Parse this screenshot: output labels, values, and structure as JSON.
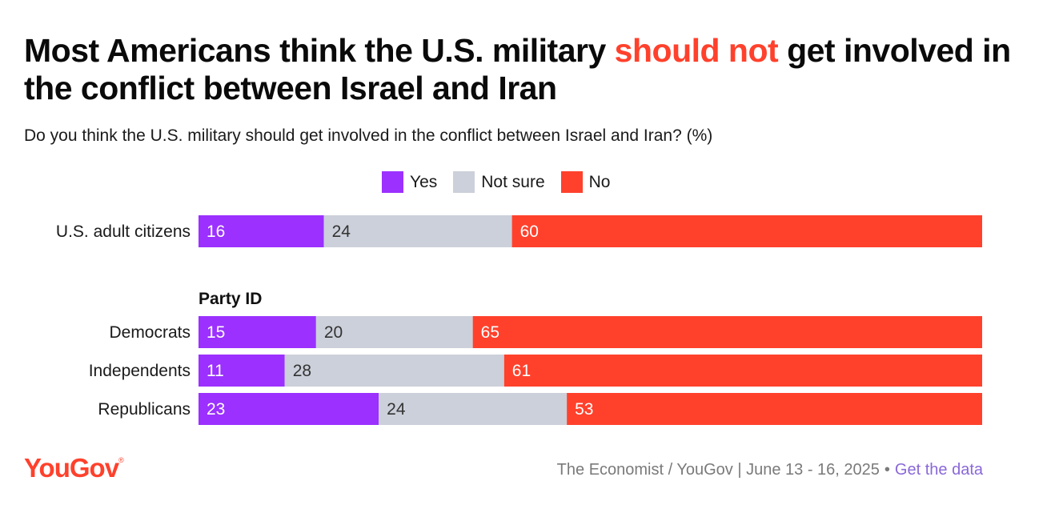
{
  "title": {
    "part1": "Most Americans think the U.S. military ",
    "highlight": "should not",
    "part2": " get involved in the conflict between Israel and Iran"
  },
  "subtitle": "Do you think the U.S. military should get involved in the conflict between Israel and Iran? (%)",
  "colors": {
    "yes": "#9b30ff",
    "not_sure": "#ccd0da",
    "no": "#ff412c",
    "highlight": "#ff412c"
  },
  "chart_data": {
    "type": "bar",
    "orientation": "horizontal",
    "stacked": true,
    "xlim": [
      0,
      100
    ],
    "legend": [
      "Yes",
      "Not sure",
      "No"
    ],
    "series": [
      {
        "name": "Yes",
        "values": [
          16,
          15,
          11,
          23
        ]
      },
      {
        "name": "Not sure",
        "values": [
          24,
          20,
          28,
          24
        ]
      },
      {
        "name": "No",
        "values": [
          60,
          65,
          61,
          53
        ]
      }
    ],
    "categories": [
      "U.S. adult citizens",
      "Democrats",
      "Independents",
      "Republicans"
    ],
    "groups": [
      {
        "label": "",
        "rows": [
          "U.S. adult citizens"
        ]
      },
      {
        "label": "Party ID",
        "rows": [
          "Democrats",
          "Independents",
          "Republicans"
        ]
      }
    ]
  },
  "footer": {
    "source": "The Economist / YouGov | June 13 - 16, 2025",
    "separator": "•",
    "link": "Get the data"
  },
  "logo": {
    "text": "YouGov",
    "mark": "®"
  }
}
